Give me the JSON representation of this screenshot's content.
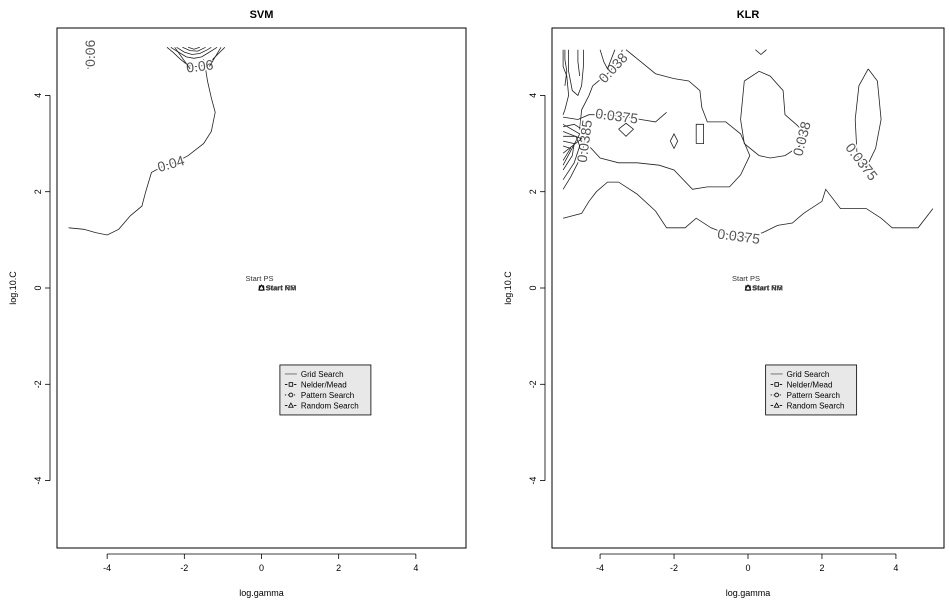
{
  "chart_data": [
    {
      "type": "contour",
      "title": "SVM",
      "xlabel": "log.gamma",
      "ylabel": "log.10.C",
      "xlim": [
        -5.3,
        5.3
      ],
      "ylim": [
        -5.4,
        5.4
      ],
      "x_ticks": [
        "-4",
        "-2",
        "0",
        "2",
        "4"
      ],
      "y_ticks": [
        "-4",
        "-2",
        "0",
        "2",
        "4"
      ],
      "x_tick_values": [
        -4,
        -2,
        0,
        2,
        4
      ],
      "y_tick_values": [
        -4,
        -2,
        0,
        2,
        4
      ],
      "contours": [
        {
          "level_label": "0.04",
          "points": [
            [
              -5.0,
              1.25
            ],
            [
              -4.6,
              1.22
            ],
            [
              -4.3,
              1.15
            ],
            [
              -4.0,
              1.1
            ],
            [
              -3.7,
              1.22
            ],
            [
              -3.4,
              1.5
            ],
            [
              -3.1,
              1.7
            ],
            [
              -3.0,
              2.0
            ],
            [
              -2.85,
              2.4
            ],
            [
              -2.5,
              2.55
            ],
            [
              -2.2,
              2.62
            ],
            [
              -1.9,
              2.75
            ],
            [
              -1.5,
              3.0
            ],
            [
              -1.3,
              3.25
            ],
            [
              -1.2,
              3.65
            ],
            [
              -1.3,
              3.95
            ],
            [
              -1.4,
              4.3
            ],
            [
              -1.45,
              4.55
            ],
            [
              -1.5,
              4.75
            ]
          ]
        },
        {
          "level_label": "0.06",
          "points": [
            [
              -4.5,
              4.55
            ],
            [
              -4.45,
              4.75
            ],
            [
              -4.45,
              5.0
            ]
          ]
        },
        {
          "level_label": "0.06",
          "points": [
            [
              -2.45,
              5.0
            ],
            [
              -2.3,
              4.9
            ],
            [
              -2.1,
              4.75
            ],
            [
              -1.9,
              4.62
            ],
            [
              -1.7,
              4.6
            ],
            [
              -1.5,
              4.62
            ],
            [
              -1.3,
              4.72
            ],
            [
              -1.1,
              4.88
            ],
            [
              -0.95,
              5.0
            ]
          ]
        },
        {
          "level_label": "",
          "points": [
            [
              -2.35,
              5.0
            ],
            [
              -2.15,
              4.9
            ],
            [
              -1.95,
              4.8
            ],
            [
              -1.75,
              4.77
            ],
            [
              -1.55,
              4.8
            ],
            [
              -1.35,
              4.9
            ],
            [
              -1.15,
              5.0
            ]
          ]
        },
        {
          "level_label": "",
          "points": [
            [
              -2.2,
              5.0
            ],
            [
              -2.0,
              4.9
            ],
            [
              -1.8,
              4.85
            ],
            [
              -1.6,
              4.87
            ],
            [
              -1.4,
              4.95
            ],
            [
              -1.3,
              5.0
            ]
          ]
        },
        {
          "level_label": "",
          "points": [
            [
              -2.05,
              5.0
            ],
            [
              -1.85,
              4.93
            ],
            [
              -1.65,
              4.92
            ],
            [
              -1.45,
              5.0
            ]
          ]
        },
        {
          "level_label": "",
          "points": [
            [
              -1.9,
              5.0
            ],
            [
              -1.75,
              4.96
            ],
            [
              -1.6,
              5.0
            ]
          ]
        },
        {
          "level_label": "",
          "points": [
            [
              -2.25,
              5.0
            ],
            [
              -1.85,
              4.55
            ]
          ]
        },
        {
          "level_label": "",
          "points": [
            [
              -1.05,
              5.0
            ],
            [
              -1.35,
              4.6
            ]
          ]
        }
      ],
      "annotations": [
        "Start PS",
        "Start NM",
        "Start RS"
      ],
      "markers": [
        {
          "series": "Nelder/Mead",
          "x": 0.0,
          "y": 0.0
        },
        {
          "series": "Pattern Search",
          "x": 0.0,
          "y": 0.0
        },
        {
          "series": "Random Search",
          "x": 0.0,
          "y": 0.0
        }
      ],
      "legend_location": "center-right",
      "legend": [
        "Grid Search",
        "Nelder/Mead",
        "Pattern Search",
        "Random Search"
      ]
    },
    {
      "type": "contour",
      "title": "KLR",
      "xlabel": "log.gamma",
      "ylabel": "log.10.C",
      "xlim": [
        -5.3,
        5.3
      ],
      "ylim": [
        -5.4,
        5.4
      ],
      "x_ticks": [
        "-4",
        "-2",
        "0",
        "2",
        "4"
      ],
      "y_ticks": [
        "-4",
        "-2",
        "0",
        "2",
        "4"
      ],
      "x_tick_values": [
        -4,
        -2,
        0,
        2,
        4
      ],
      "y_tick_values": [
        -4,
        -2,
        0,
        2,
        4
      ],
      "contours": [
        {
          "level_label": "0.0375",
          "points": [
            [
              -5.0,
              1.45
            ],
            [
              -4.5,
              1.55
            ],
            [
              -4.3,
              1.8
            ],
            [
              -4.1,
              2.0
            ],
            [
              -3.8,
              2.2
            ],
            [
              -3.5,
              2.2
            ],
            [
              -3.0,
              1.95
            ],
            [
              -2.5,
              1.6
            ],
            [
              -2.2,
              1.25
            ],
            [
              -1.7,
              1.25
            ],
            [
              -1.4,
              1.45
            ],
            [
              -1.0,
              1.25
            ],
            [
              -0.5,
              1.1
            ],
            [
              0.0,
              1.05
            ],
            [
              0.4,
              1.15
            ],
            [
              0.8,
              1.3
            ],
            [
              1.2,
              1.35
            ],
            [
              1.5,
              1.55
            ],
            [
              2.0,
              1.8
            ],
            [
              2.1,
              2.05
            ],
            [
              2.5,
              1.65
            ],
            [
              3.2,
              1.65
            ],
            [
              3.6,
              1.45
            ],
            [
              3.9,
              1.25
            ],
            [
              4.6,
              1.25
            ],
            [
              5.0,
              1.65
            ]
          ]
        },
        {
          "level_label": "0.038",
          "points": [
            [
              -4.2,
              4.2
            ],
            [
              -3.8,
              4.45
            ],
            [
              -3.5,
              4.7
            ],
            [
              -3.4,
              4.95
            ]
          ]
        },
        {
          "level_label": "",
          "points": [
            [
              -3.3,
              4.95
            ],
            [
              -2.9,
              4.7
            ],
            [
              -2.5,
              4.45
            ],
            [
              -2.0,
              4.35
            ],
            [
              -1.6,
              4.3
            ],
            [
              -1.3,
              4.1
            ],
            [
              -1.25,
              3.75
            ],
            [
              -1.1,
              3.45
            ],
            [
              -0.6,
              3.45
            ],
            [
              -0.2,
              3.2
            ],
            [
              0.05,
              2.75
            ],
            [
              -0.2,
              2.35
            ],
            [
              -0.5,
              2.1
            ],
            [
              -1.1,
              2.1
            ],
            [
              -1.5,
              2.05
            ],
            [
              -2.0,
              2.45
            ],
            [
              -2.4,
              2.55
            ],
            [
              -3.0,
              2.6
            ],
            [
              -3.5,
              2.6
            ],
            [
              -4.0,
              2.7
            ],
            [
              -4.3,
              2.95
            ],
            [
              -4.55,
              3.3
            ],
            [
              -4.5,
              3.7
            ],
            [
              -4.3,
              4.0
            ],
            [
              -4.2,
              4.2
            ]
          ]
        },
        {
          "level_label": "0.0375",
          "points": [
            [
              -5.0,
              3.55
            ],
            [
              -4.6,
              3.5
            ],
            [
              -4.3,
              3.6
            ],
            [
              -3.8,
              3.6
            ],
            [
              -3.3,
              3.55
            ],
            [
              -2.9,
              3.5
            ],
            [
              -2.5,
              3.45
            ],
            [
              -2.2,
              3.65
            ]
          ]
        },
        {
          "level_label": "",
          "points": [
            [
              -3.5,
              3.3
            ],
            [
              -3.3,
              3.15
            ],
            [
              -3.1,
              3.3
            ],
            [
              -3.3,
              3.42
            ],
            [
              -3.5,
              3.3
            ]
          ]
        },
        {
          "level_label": "",
          "points": [
            [
              -2.1,
              3.05
            ],
            [
              -2.0,
              2.9
            ],
            [
              -1.9,
              3.05
            ],
            [
              -2.0,
              3.2
            ],
            [
              -2.1,
              3.05
            ]
          ]
        },
        {
          "level_label": "",
          "points": [
            [
              -1.4,
              3.0
            ],
            [
              -1.4,
              3.4
            ],
            [
              -1.2,
              3.4
            ],
            [
              -1.2,
              3.0
            ],
            [
              -1.4,
              3.0
            ]
          ]
        },
        {
          "level_label": "0.038",
          "points": [
            [
              -0.1,
              4.3
            ],
            [
              0.3,
              4.5
            ],
            [
              0.6,
              4.4
            ],
            [
              0.95,
              4.1
            ],
            [
              1.0,
              3.6
            ],
            [
              1.3,
              3.4
            ],
            [
              1.5,
              3.25
            ],
            [
              1.4,
              2.95
            ],
            [
              1.0,
              2.75
            ],
            [
              0.6,
              2.7
            ],
            [
              0.3,
              2.75
            ],
            [
              -0.1,
              3.0
            ],
            [
              -0.2,
              3.5
            ],
            [
              -0.1,
              4.3
            ]
          ]
        },
        {
          "level_label": "0.0375",
          "points": [
            [
              3.25,
              4.55
            ],
            [
              3.5,
              4.3
            ],
            [
              3.6,
              3.5
            ],
            [
              3.45,
              2.9
            ],
            [
              3.2,
              2.5
            ],
            [
              2.95,
              2.75
            ],
            [
              2.9,
              3.5
            ],
            [
              3.0,
              4.2
            ],
            [
              3.25,
              4.55
            ]
          ]
        },
        {
          "level_label": "0.0385",
          "points": [
            [
              -5.0,
              2.05
            ],
            [
              -4.8,
              2.3
            ],
            [
              -4.6,
              2.6
            ],
            [
              -4.45,
              2.9
            ],
            [
              -4.4,
              3.2
            ],
            [
              -4.5,
              3.3
            ],
            [
              -4.7,
              3.4
            ],
            [
              -5.0,
              3.35
            ]
          ]
        },
        {
          "level_label": "",
          "points": [
            [
              -5.0,
              2.25
            ],
            [
              -4.7,
              2.6
            ],
            [
              -4.55,
              2.95
            ],
            [
              -4.65,
              3.15
            ],
            [
              -5.0,
              3.15
            ]
          ]
        },
        {
          "level_label": "",
          "points": [
            [
              -5.0,
              2.45
            ],
            [
              -4.75,
              2.75
            ],
            [
              -4.7,
              3.0
            ],
            [
              -5.0,
              3.05
            ]
          ]
        },
        {
          "level_label": "",
          "points": [
            [
              -5.0,
              2.65
            ],
            [
              -4.8,
              2.9
            ],
            [
              -5.0,
              2.95
            ]
          ]
        },
        {
          "level_label": "",
          "points": [
            [
              -5.0,
              2.55
            ],
            [
              -4.55,
              3.2
            ],
            [
              -5.0,
              3.4
            ]
          ]
        },
        {
          "level_label": "",
          "points": [
            [
              -5.0,
              2.8
            ],
            [
              -4.5,
              3.1
            ],
            [
              -5.0,
              3.25
            ]
          ]
        },
        {
          "level_label": "",
          "points": [
            [
              -5.0,
              4.95
            ],
            [
              -5.0,
              4.6
            ],
            [
              -4.9,
              4.4
            ],
            [
              -4.85,
              4.0
            ],
            [
              -4.95,
              3.7
            ],
            [
              -5.0,
              3.6
            ]
          ]
        },
        {
          "level_label": "",
          "points": [
            [
              -4.85,
              4.95
            ],
            [
              -4.85,
              4.5
            ],
            [
              -4.75,
              4.1
            ],
            [
              -4.6,
              4.0
            ],
            [
              -4.5,
              4.2
            ],
            [
              -4.45,
              4.6
            ],
            [
              -4.45,
              4.95
            ]
          ]
        },
        {
          "level_label": "",
          "points": [
            [
              -4.95,
              4.95
            ],
            [
              -4.95,
              4.75
            ],
            [
              -4.9,
              4.5
            ],
            [
              -4.95,
              4.2
            ]
          ]
        },
        {
          "level_label": "",
          "points": [
            [
              -4.6,
              4.95
            ],
            [
              -4.6,
              4.7
            ],
            [
              -4.55,
              4.4
            ]
          ]
        },
        {
          "level_label": "",
          "points": [
            [
              -4.0,
              4.95
            ],
            [
              -3.9,
              4.7
            ],
            [
              -3.8,
              4.55
            ],
            [
              -3.7,
              4.75
            ],
            [
              -3.6,
              4.95
            ]
          ]
        },
        {
          "level_label": "",
          "points": [
            [
              0.2,
              4.95
            ],
            [
              0.35,
              4.85
            ],
            [
              0.5,
              4.95
            ]
          ]
        }
      ],
      "annotations": [
        "Start PS",
        "Start NM",
        "Start RS"
      ],
      "markers": [
        {
          "series": "Nelder/Mead",
          "x": 0.0,
          "y": 0.0
        },
        {
          "series": "Pattern Search",
          "x": 0.0,
          "y": 0.0
        },
        {
          "series": "Random Search",
          "x": 0.0,
          "y": 0.0
        }
      ],
      "legend_location": "center-right",
      "legend": [
        "Grid Search",
        "Nelder/Mead",
        "Pattern Search",
        "Random Search"
      ]
    }
  ]
}
